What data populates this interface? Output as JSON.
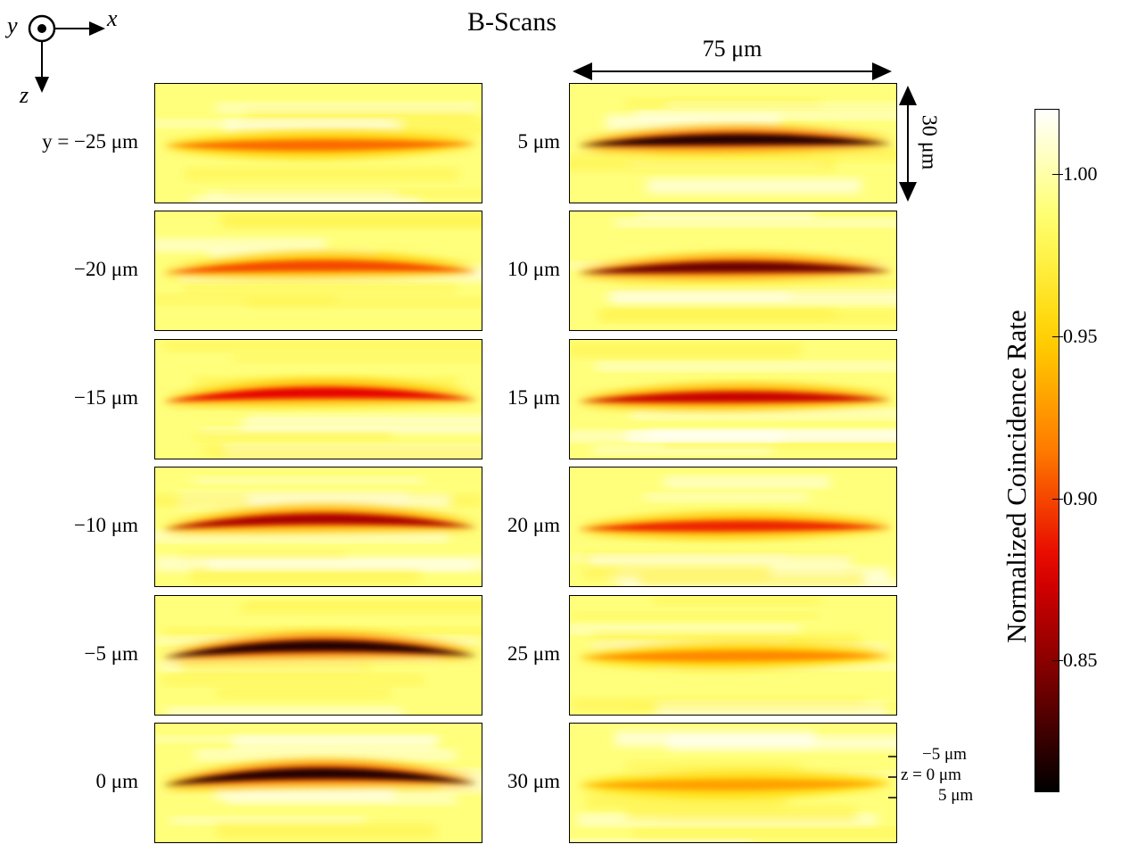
{
  "title": "B-Scans",
  "orientation": {
    "x_label": "x",
    "y_label": "y",
    "z_label": "z"
  },
  "scale_bars": {
    "width": "75 μm",
    "height": "30 μm"
  },
  "z_markers": [
    "−5 μm",
    "z = 0 μm",
    "5 μm"
  ],
  "colorbar": {
    "title": "Normalized Coincidence Rate",
    "ticks": [
      {
        "value": 1.0,
        "label": "1.00"
      },
      {
        "value": 0.95,
        "label": "0.95"
      },
      {
        "value": 0.9,
        "label": "0.90"
      },
      {
        "value": 0.85,
        "label": "0.85"
      }
    ],
    "range": [
      0.81,
      1.02
    ],
    "colors": [
      "#000000",
      "#7a0000",
      "#e60000",
      "#ff7a00",
      "#ffd200",
      "#ffff66",
      "#ffffff"
    ]
  },
  "chart_data": {
    "type": "heatmap",
    "title": "B-Scans",
    "x_extent_um": 75,
    "z_extent_um": 30,
    "value_range": [
      0.81,
      1.02
    ],
    "series": [
      {
        "name": "y = −25 μm",
        "y_um": -25,
        "min_value": 0.91,
        "curvature": 0.0
      },
      {
        "name": "−20 μm",
        "y_um": -20,
        "min_value": 0.9,
        "curvature": 0.5
      },
      {
        "name": "−15 μm",
        "y_um": -15,
        "min_value": 0.88,
        "curvature": 0.6
      },
      {
        "name": "−10 μm",
        "y_um": -10,
        "min_value": 0.86,
        "curvature": 0.7
      },
      {
        "name": "−5 μm",
        "y_um": -5,
        "min_value": 0.82,
        "curvature": 0.8
      },
      {
        "name": "0 μm",
        "y_um": 0,
        "min_value": 0.82,
        "curvature": 0.8
      },
      {
        "name": "5 μm",
        "y_um": 5,
        "min_value": 0.82,
        "curvature": 0.4
      },
      {
        "name": "10 μm",
        "y_um": 10,
        "min_value": 0.84,
        "curvature": 0.4
      },
      {
        "name": "15 μm",
        "y_um": 15,
        "min_value": 0.87,
        "curvature": 0.3
      },
      {
        "name": "20 μm",
        "y_um": 20,
        "min_value": 0.89,
        "curvature": 0.2
      },
      {
        "name": "25 μm",
        "y_um": 25,
        "min_value": 0.92,
        "curvature": 0.1
      },
      {
        "name": "30 μm",
        "y_um": 30,
        "min_value": 0.93,
        "curvature": 0.0
      }
    ]
  }
}
